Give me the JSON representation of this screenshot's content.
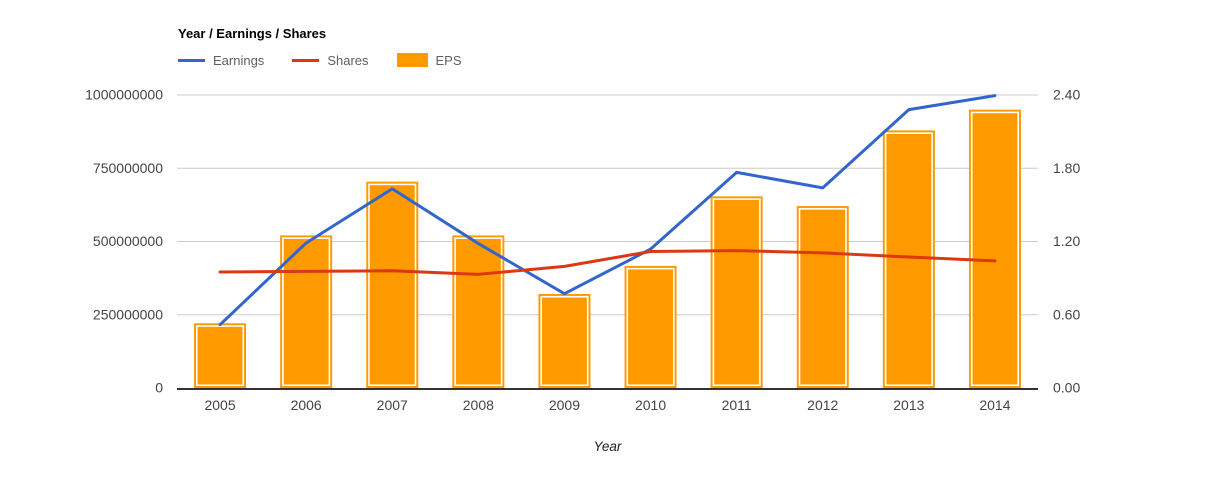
{
  "chart": {
    "title": "Year / Earnings / Shares",
    "xlabel": "Year",
    "legend": [
      {
        "label": "Earnings",
        "type": "line",
        "color": "#3366CC"
      },
      {
        "label": "Shares",
        "type": "line",
        "color": "#DC3912"
      },
      {
        "label": "EPS",
        "type": "bar",
        "color": "#FF9900"
      }
    ]
  },
  "chart_data": {
    "type": "combo",
    "title": "Year / Earnings / Shares",
    "xlabel": "Year",
    "categories": [
      "2005",
      "2006",
      "2007",
      "2008",
      "2009",
      "2010",
      "2011",
      "2012",
      "2013",
      "2014"
    ],
    "series": [
      {
        "name": "Earnings",
        "type": "line",
        "axis": "left",
        "color": "#3366CC",
        "values": [
          216000000,
          495000000,
          680000000,
          493000000,
          322000000,
          474000000,
          736000000,
          683000000,
          950000000,
          998000000
        ]
      },
      {
        "name": "Shares",
        "type": "line",
        "axis": "left",
        "color": "#DC3912",
        "values": [
          396000000,
          398000000,
          400000000,
          388000000,
          415000000,
          466000000,
          469000000,
          461000000,
          447000000,
          434000000
        ]
      },
      {
        "name": "EPS",
        "type": "bar",
        "axis": "right",
        "color": "#FF9900",
        "values": [
          0.53,
          1.25,
          1.69,
          1.25,
          0.77,
          1.0,
          1.57,
          1.49,
          2.11,
          2.28
        ]
      }
    ],
    "left_axis": {
      "min": 0,
      "max": 1000000000,
      "ticks": [
        "0",
        "250000000",
        "500000000",
        "750000000",
        "1000000000"
      ]
    },
    "right_axis": {
      "min": 0,
      "max": 2.4,
      "ticks": [
        "0.00",
        "0.60",
        "1.20",
        "1.80",
        "2.40"
      ]
    },
    "grid": true,
    "legend_position": "top",
    "colors": {
      "gridline": "#cccccc",
      "baseline": "#333333",
      "tick_text": "#444444"
    }
  }
}
